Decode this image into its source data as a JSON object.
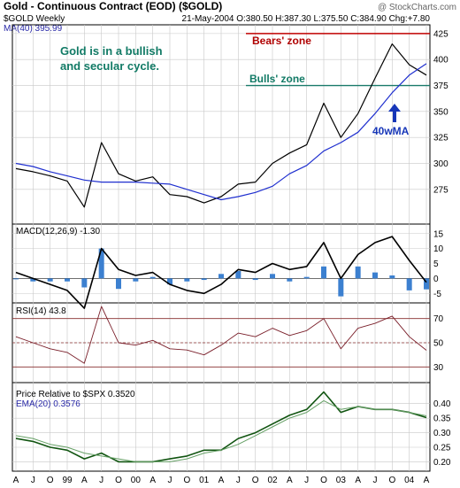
{
  "header": {
    "title": "Gold - Continuous Contract (EOD) ($GOLD)",
    "copyright": "@ StockCharts.com",
    "symbol_label": "$GOLD Weekly",
    "ohlc": "21-May-2004 O:380.50 H:387.30 L:375.50 C:384.90 Chg:+7.80",
    "ma_label": "MA(40) 395.99"
  },
  "colors": {
    "price": "#000000",
    "ma": "#1f2fcf",
    "grid": "#c8c8c8",
    "bears": "#c00000",
    "bulls": "#1a7a6a",
    "macd_hist": "#3c80d0",
    "rsi_line": "#7a1f2a",
    "rsi_ref": "#8a3030",
    "rel_line": "#115511",
    "ema_line": "#66a066",
    "annot_green": "#117a65",
    "annot_blue": "#1636b8"
  },
  "annotations": {
    "cycle_line1": "Gold is in a bullish",
    "cycle_line2": "and secular cycle.",
    "bears_zone": "Bears' zone",
    "bulls_zone": "Bulls' zone",
    "ma_arrow_label": "40wMA"
  },
  "macd_label": "MACD(12,26,9) -1.30",
  "rsi_label": "RSI(14) 43.8",
  "rel_label": "Price Relative to $SPX 0.3520",
  "ema_label": "EMA(20) 0.3576",
  "chart_data": [
    {
      "panel": "price",
      "type": "line",
      "x": [
        "Jul-1998",
        "Oct-1998",
        "Jan-1999",
        "Apr-1999",
        "Jul-1999",
        "Oct-1999",
        "Jan-2000",
        "Apr-2000",
        "Jul-2000",
        "Oct-2000",
        "Jan-2001",
        "Apr-2001",
        "Jul-2001",
        "Oct-2001",
        "Jan-2002",
        "Apr-2002",
        "Jul-2002",
        "Oct-2002",
        "Jan-2003",
        "Apr-2003",
        "Jul-2003",
        "Oct-2003",
        "Jan-2004",
        "Mar-2004",
        "May-2004"
      ],
      "series": [
        {
          "name": "$GOLD Weekly",
          "values": [
            295,
            292,
            288,
            283,
            258,
            320,
            290,
            283,
            287,
            270,
            268,
            262,
            268,
            280,
            282,
            300,
            310,
            318,
            358,
            325,
            348,
            382,
            415,
            395,
            385
          ]
        },
        {
          "name": "MA(40) 395.99",
          "values": [
            300,
            297,
            292,
            288,
            284,
            282,
            282,
            282,
            281,
            280,
            275,
            270,
            265,
            268,
            272,
            278,
            290,
            298,
            312,
            320,
            330,
            348,
            368,
            385,
            396
          ]
        }
      ],
      "reference_lines": {
        "bears_zone": 425,
        "bulls_zone": 375
      },
      "yticks": [
        275,
        300,
        325,
        350,
        375,
        400,
        425
      ],
      "ylim": [
        245,
        430
      ]
    },
    {
      "panel": "macd",
      "type": "line",
      "series": [
        {
          "name": "MACD(12,26,9) -1.30",
          "values": [
            2,
            0,
            -2,
            -4,
            -10,
            10,
            3,
            1,
            2,
            -2,
            -4,
            -5,
            -2,
            3,
            2,
            5,
            3,
            4,
            12,
            0,
            8,
            12,
            14,
            6,
            -1.3
          ]
        }
      ],
      "yticks": [
        -5,
        0,
        5,
        10,
        15
      ],
      "ylim": [
        -7,
        17
      ]
    },
    {
      "panel": "rsi",
      "type": "line",
      "series": [
        {
          "name": "RSI(14) 43.8",
          "values": [
            55,
            50,
            45,
            42,
            33,
            80,
            50,
            48,
            52,
            45,
            44,
            40,
            48,
            58,
            55,
            62,
            56,
            60,
            70,
            45,
            62,
            66,
            72,
            55,
            43.8
          ]
        }
      ],
      "yticks": [
        30,
        50,
        70
      ],
      "ylim": [
        20,
        80
      ]
    },
    {
      "panel": "relative",
      "type": "line",
      "series": [
        {
          "name": "Price Relative to $SPX 0.3520",
          "values": [
            0.28,
            0.27,
            0.25,
            0.24,
            0.21,
            0.23,
            0.2,
            0.2,
            0.2,
            0.21,
            0.22,
            0.24,
            0.24,
            0.28,
            0.3,
            0.33,
            0.36,
            0.38,
            0.44,
            0.37,
            0.39,
            0.38,
            0.38,
            0.37,
            0.352
          ]
        },
        {
          "name": "EMA(20) 0.3576",
          "values": [
            0.29,
            0.28,
            0.26,
            0.25,
            0.23,
            0.22,
            0.21,
            0.2,
            0.2,
            0.2,
            0.21,
            0.23,
            0.24,
            0.26,
            0.29,
            0.32,
            0.35,
            0.37,
            0.41,
            0.38,
            0.39,
            0.38,
            0.38,
            0.37,
            0.358
          ]
        }
      ],
      "yticks": [
        0.2,
        0.25,
        0.3,
        0.35,
        0.4
      ],
      "ylim": [
        0.18,
        0.46
      ]
    }
  ],
  "xaxis": {
    "labels": [
      "A",
      "J",
      "O",
      "99",
      "A",
      "J",
      "O",
      "00",
      "A",
      "J",
      "O",
      "01",
      "A",
      "J",
      "O",
      "02",
      "A",
      "J",
      "O",
      "03",
      "A",
      "J",
      "O",
      "04",
      "A"
    ]
  }
}
